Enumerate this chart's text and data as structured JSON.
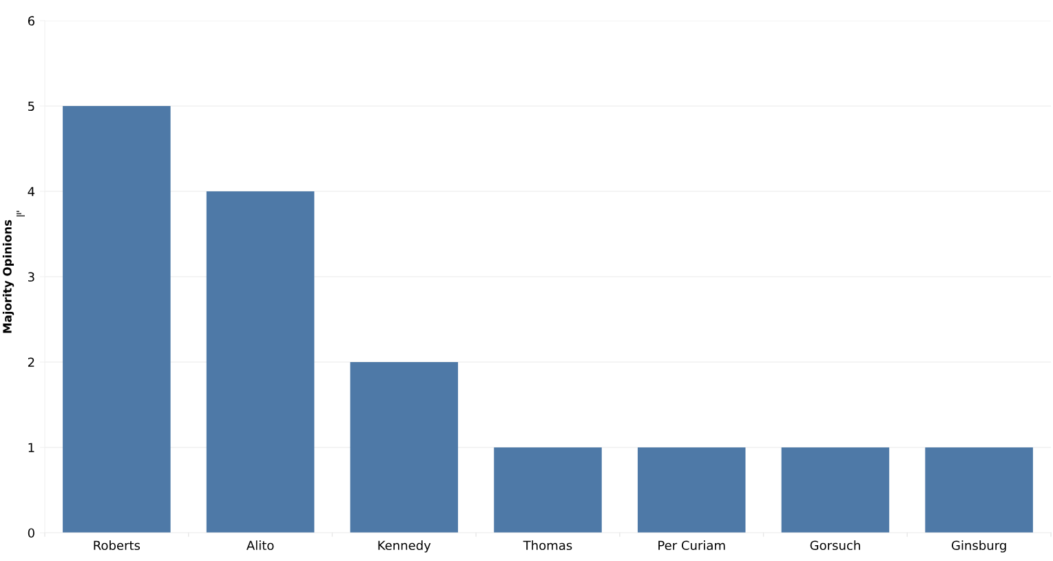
{
  "chart_data": {
    "type": "bar",
    "ylabel": "Majority Opinions",
    "categories": [
      "Roberts",
      "Alito",
      "Kennedy",
      "Thomas",
      "Per Curiam",
      "Gorsuch",
      "Ginsburg"
    ],
    "values": [
      5,
      4,
      2,
      1,
      1,
      1,
      1
    ],
    "color": "#4e79a7",
    "ylim": [
      0,
      6
    ],
    "yticks": [
      0,
      1,
      2,
      3,
      4,
      5,
      6
    ],
    "grid": "y",
    "legend": false
  }
}
